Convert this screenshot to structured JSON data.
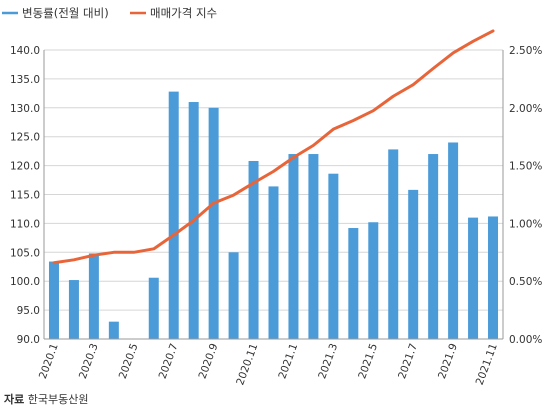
{
  "colors": {
    "bar": "#4B9BD8",
    "line": "#E8653A",
    "grid": "#d6d6d6",
    "axis": "#9a9a9a"
  },
  "source": {
    "label": "자료",
    "text": "한국부동산원"
  },
  "chart_data": {
    "type": "bar",
    "categories": [
      "2020.1",
      "2020.2",
      "2020.3",
      "2020.4",
      "2020.5",
      "2020.6",
      "2020.7",
      "2020.8",
      "2020.9",
      "2020.10",
      "2020.11",
      "2020.12",
      "2021.1",
      "2021.2",
      "2021.3",
      "2021.4",
      "2021.5",
      "2021.6",
      "2021.7",
      "2021.8",
      "2021.9",
      "2021.10",
      "2021.11"
    ],
    "x_tick_labels": [
      "2020.1",
      "2020.3",
      "2020.5",
      "2020.7",
      "2020.9",
      "2020.11",
      "2021.1",
      "2021.3",
      "2021.5",
      "2021.7",
      "2021.9",
      "2021.11"
    ],
    "series": [
      {
        "name": "변동률(전월 대비)",
        "type": "bar",
        "axis": "right",
        "values": [
          0.67,
          0.51,
          0.74,
          0.15,
          0.0,
          0.53,
          2.14,
          2.05,
          2.0,
          0.75,
          1.54,
          1.32,
          1.6,
          1.6,
          1.43,
          0.96,
          1.01,
          1.64,
          1.29,
          1.6,
          1.7,
          1.05,
          1.06
        ]
      },
      {
        "name": "매매가격 지수",
        "type": "line",
        "axis": "left",
        "values": [
          103.2,
          103.7,
          104.5,
          105.0,
          105.0,
          105.6,
          108.0,
          110.5,
          113.5,
          114.9,
          117.0,
          119.0,
          121.4,
          123.5,
          126.3,
          127.8,
          129.5,
          132.0,
          134.0,
          136.8,
          139.5,
          141.5,
          143.3
        ]
      }
    ],
    "left_axis": {
      "ylim": [
        90.0,
        140.0
      ],
      "ticks": [
        "90.0",
        "95.0",
        "100.0",
        "105.0",
        "110.0",
        "115.0",
        "120.0",
        "125.0",
        "130.0",
        "135.0",
        "140.0"
      ]
    },
    "right_axis": {
      "ylim": [
        0.0,
        2.5
      ],
      "ticks": [
        "0.00%",
        "0.50%",
        "1.00%",
        "1.50%",
        "2.00%",
        "2.50%"
      ]
    },
    "grid": true,
    "legend": "top-left"
  }
}
